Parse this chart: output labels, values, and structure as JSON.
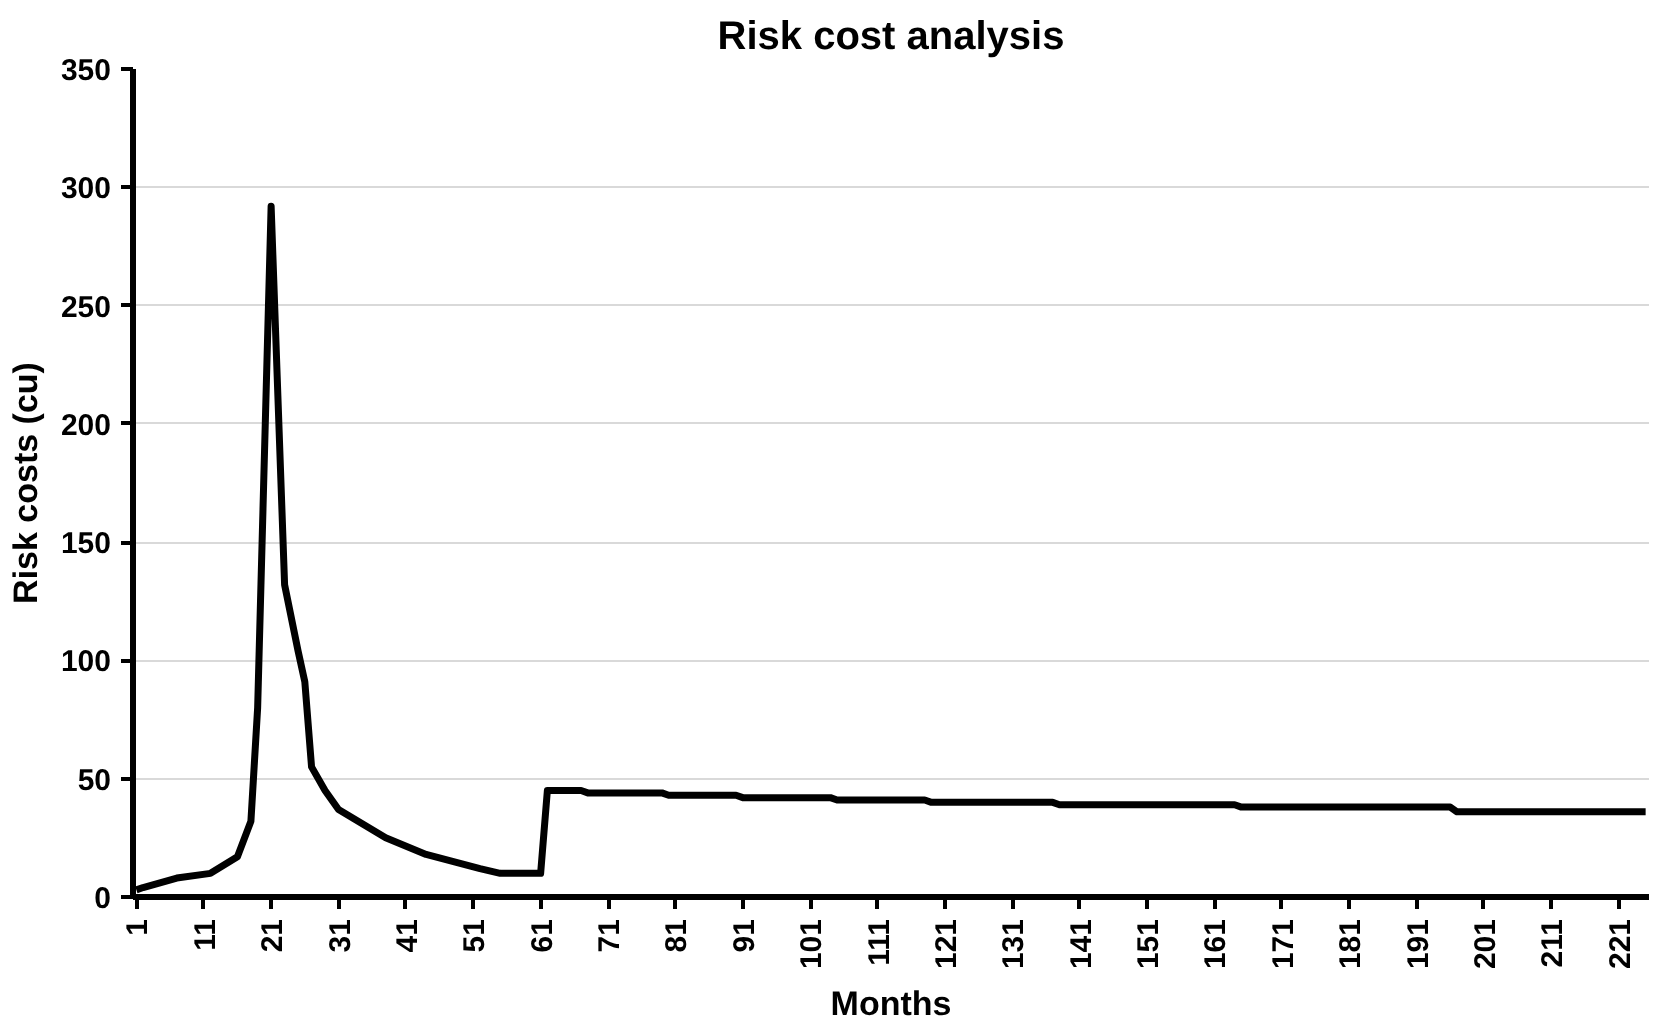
{
  "chart_data": {
    "type": "line",
    "title": "Risk cost analysis",
    "xlabel": "Months",
    "ylabel": "Risk costs (cu)",
    "x": [
      1,
      2,
      7,
      12,
      16,
      18,
      19,
      21,
      23,
      25,
      26,
      27,
      29,
      31,
      38,
      44,
      52,
      55,
      60,
      61,
      62,
      67,
      68,
      79,
      80,
      90,
      91,
      104,
      105,
      118,
      119,
      137,
      138,
      164,
      165,
      196,
      197,
      225
    ],
    "series": [
      {
        "color": "#000000",
        "values": [
          3,
          4,
          8,
          10,
          17,
          32,
          80,
          292,
          132,
          104,
          91,
          55,
          45,
          37,
          25,
          18,
          12,
          10,
          10,
          10,
          45,
          45,
          44,
          44,
          43,
          43,
          42,
          42,
          41,
          41,
          40,
          40,
          39,
          39,
          38,
          38,
          36,
          36
        ]
      }
    ],
    "xlim": [
      0.5,
      225.5
    ],
    "xticks": [
      1,
      11,
      21,
      31,
      41,
      51,
      61,
      71,
      81,
      91,
      101,
      111,
      121,
      131,
      141,
      151,
      161,
      171,
      181,
      191,
      201,
      211,
      221
    ],
    "ylim": [
      0,
      350
    ],
    "yticks": [
      0,
      50,
      100,
      150,
      200,
      250,
      300,
      350
    ],
    "grid": "y",
    "marker": "none",
    "line_style": "solid"
  }
}
